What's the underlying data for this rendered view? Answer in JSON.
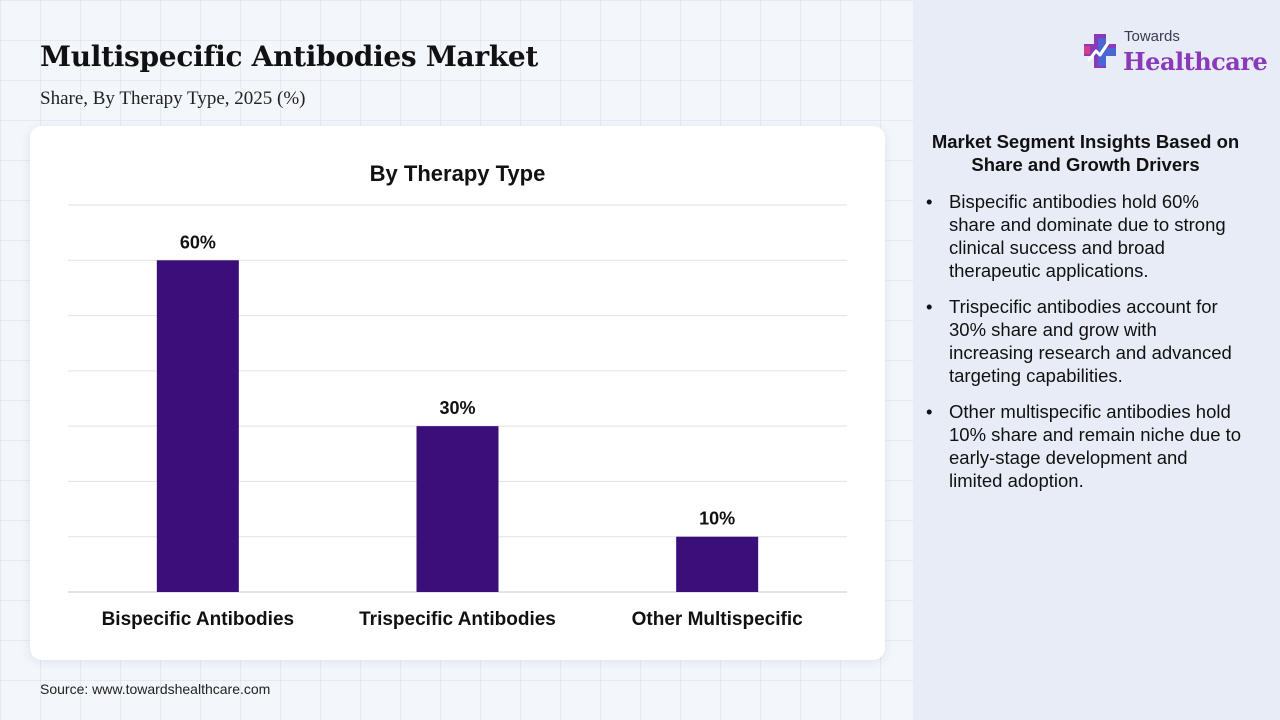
{
  "header": {
    "title": "Multispecific Antibodies Market",
    "subtitle": "Share, By Therapy Type, 2025 (%)"
  },
  "logo": {
    "line1": "Towards",
    "line2": "Healthcare",
    "icon": "medical-cross-icon",
    "colors": {
      "purple": "#8a3ab9",
      "blue": "#3f6fd8",
      "pink": "#d43c8c"
    }
  },
  "chart_data": {
    "type": "bar",
    "title": "By Therapy Type",
    "categories": [
      "Bispecific Antibodies",
      "Trispecific Antibodies",
      "Other Multispecific"
    ],
    "values": [
      60,
      30,
      10
    ],
    "data_labels": [
      "60%",
      "30%",
      "10%"
    ],
    "ylim": [
      0,
      70
    ],
    "y_gridlines": [
      0,
      10,
      20,
      30,
      40,
      50,
      60,
      70
    ],
    "grid": true,
    "y_axis_labels_shown": false,
    "bar_color": "#3b0f7a",
    "xlabel": "",
    "ylabel": ""
  },
  "source": "Source: www.towardshealthcare.com",
  "insights": {
    "title": "Market Segment Insights Based on Share and Growth Drivers",
    "bullet": "•",
    "items": [
      "Bispecific antibodies hold 60% share and dominate due to strong clinical success and broad therapeutic applications.",
      "Trispecific antibodies account for 30% share and grow with increasing research and advanced targeting capabilities.",
      "Other multispecific antibodies hold 10% share and remain niche due to early-stage development and limited adoption."
    ]
  }
}
